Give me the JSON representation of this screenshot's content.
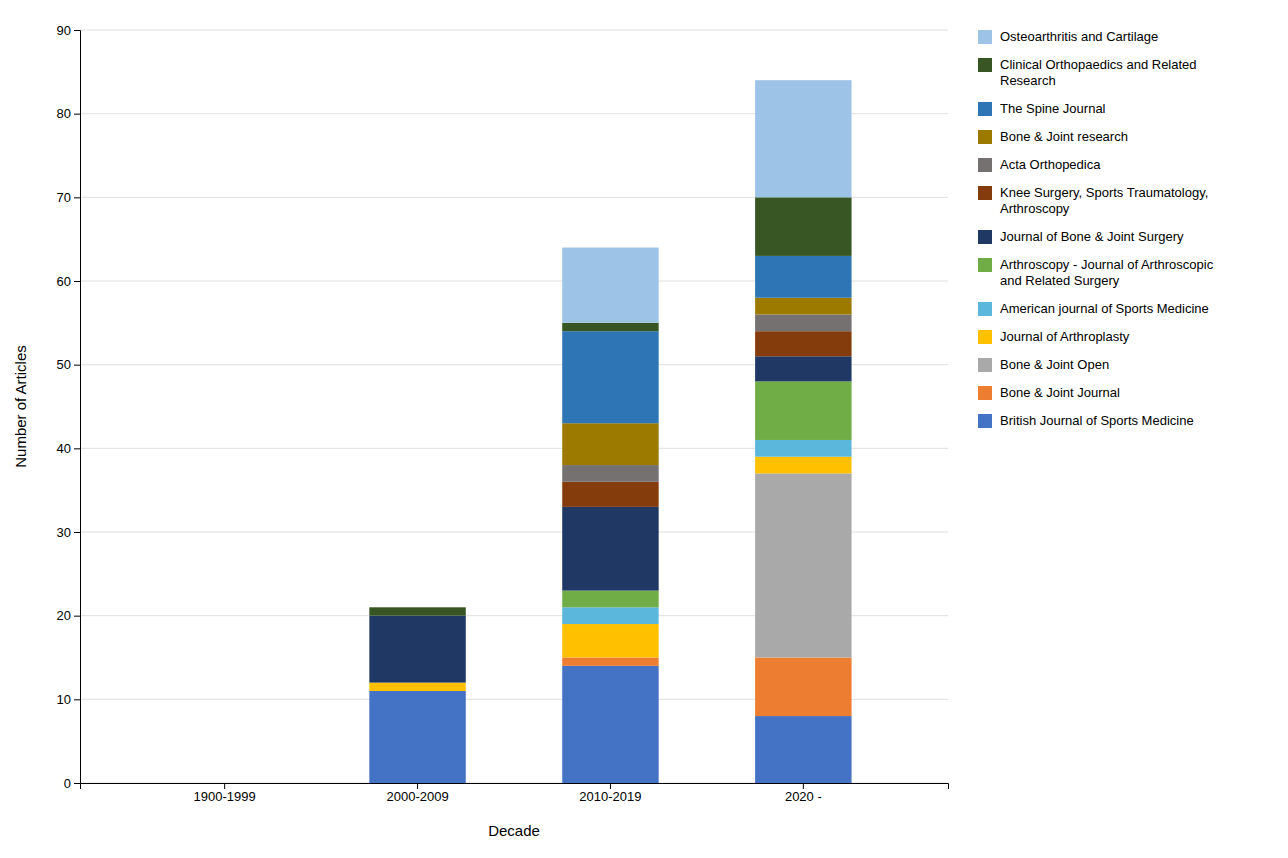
{
  "chart_data": {
    "type": "bar",
    "stacked": true,
    "categories": [
      "1900-1999",
      "2000-2009",
      "2010-2019",
      "2020 -"
    ],
    "series": [
      {
        "name": "British Journal of Sports Medicine",
        "color": "#4472C4",
        "values": [
          0,
          11,
          14,
          8
        ]
      },
      {
        "name": "Bone & Joint Journal",
        "color": "#ED7D31",
        "values": [
          0,
          0,
          1,
          7
        ]
      },
      {
        "name": "Bone & Joint Open",
        "color": "#A9A9A9",
        "values": [
          0,
          0,
          0,
          22
        ]
      },
      {
        "name": "Journal of Arthroplasty",
        "color": "#FFC000",
        "values": [
          0,
          1,
          4,
          2
        ]
      },
      {
        "name": "American journal of Sports Medicine",
        "color": "#5BB7DB",
        "values": [
          0,
          0,
          2,
          2
        ]
      },
      {
        "name": "Arthroscopy - Journal of Arthroscopic\nand Related Surgery",
        "color": "#70AD47",
        "values": [
          0,
          0,
          2,
          7
        ]
      },
      {
        "name": "Journal of Bone & Joint Surgery",
        "color": "#1F3864",
        "values": [
          0,
          8,
          10,
          3
        ]
      },
      {
        "name": "Knee Surgery, Sports Traumatology,\nArthroscopy",
        "color": "#843C0C",
        "values": [
          0,
          0,
          3,
          3
        ]
      },
      {
        "name": "Acta Orthopedica",
        "color": "#767171",
        "values": [
          0,
          0,
          2,
          2
        ]
      },
      {
        "name": "Bone & Joint research",
        "color": "#9C7A00",
        "values": [
          0,
          0,
          5,
          2
        ]
      },
      {
        "name": "The Spine Journal",
        "color": "#2E75B6",
        "values": [
          0,
          0,
          11,
          5
        ]
      },
      {
        "name": "Clinical Orthopaedics and Related\nResearch",
        "color": "#375623",
        "values": [
          0,
          1,
          1,
          7
        ]
      },
      {
        "name": "Osteoarthritis and Cartilage",
        "color": "#9DC3E6",
        "values": [
          0,
          0,
          9,
          14
        ]
      }
    ],
    "xlabel": "Decade",
    "ylabel": "Number of Articles",
    "ylim": [
      0,
      90
    ],
    "yticks": [
      0,
      10,
      20,
      30,
      40,
      50,
      60,
      70,
      80,
      90
    ],
    "grid": true,
    "legend": "right"
  }
}
